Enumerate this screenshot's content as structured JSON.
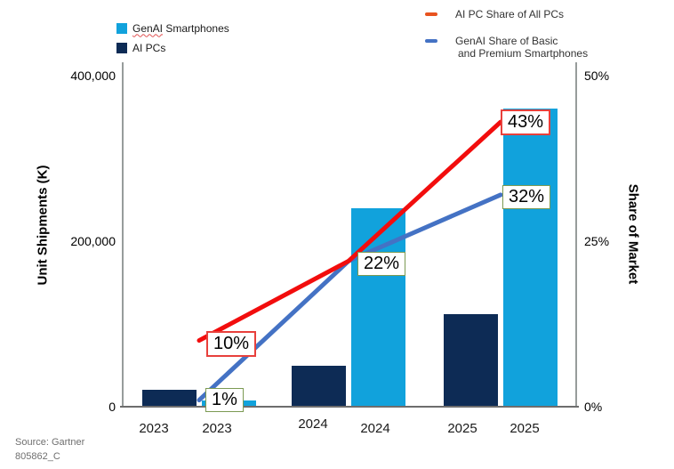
{
  "legend_left": {
    "item1_word1": "GenAI",
    "item1_word2": " Smartphones",
    "item2": "AI PCs"
  },
  "legend_right": {
    "item1": "AI PC Share of All PCs",
    "item2_line1": "GenAI Share of Basic",
    "item2_line2": "and Premium Smartphones"
  },
  "source": {
    "line1": "Source: Gartner",
    "line2": "805862_C"
  },
  "colors": {
    "genai_bar": "#11a2dc",
    "ai_pc_bar": "#0d2b55",
    "ai_pc_line": "#f20d0d",
    "ai_pc_legend_dash": "#e8531f",
    "genai_line": "#4472c4",
    "callout_red_border": "#e8403c",
    "callout_green_border": "#7c9a53",
    "axis_grey": "#979c9b"
  },
  "chart_data": {
    "type": "bar+line combo (dual axis)",
    "bar_categories": [
      "2023",
      "2024",
      "2025"
    ],
    "x_tick_labels": [
      "2023",
      "2023",
      "2024",
      "2024",
      "2025",
      "2025"
    ],
    "bar_series": [
      {
        "name": "AI PCs",
        "color": "#0d2b55",
        "values_k": [
          20000,
          50000,
          112000
        ]
      },
      {
        "name": "GenAI Smartphones",
        "color": "#11a2dc",
        "values_k": [
          7000,
          240000,
          360000
        ]
      }
    ],
    "line_series": [
      {
        "name": "AI PC Share of All PCs",
        "color": "#f20d0d",
        "values_pct": [
          10,
          22,
          43
        ]
      },
      {
        "name": "GenAI Share of Basic and Premium Smartphones",
        "color": "#4472c4",
        "values_pct": [
          1,
          22,
          32
        ]
      }
    ],
    "callouts": [
      {
        "text": "10%",
        "series": 0,
        "year": 0,
        "border": "red"
      },
      {
        "text": "1%",
        "series": 1,
        "year": 0,
        "border": "green"
      },
      {
        "text": "22%",
        "series": 1,
        "year": 1,
        "border": "green"
      },
      {
        "text": "43%",
        "series": 0,
        "year": 2,
        "border": "red"
      },
      {
        "text": "32%",
        "series": 1,
        "year": 2,
        "border": "green"
      }
    ],
    "y_left_axis": {
      "title": "Unit Shipments (K)",
      "ticks": [
        "400,000",
        "200,000",
        "0"
      ],
      "tick_values": [
        400000,
        200000,
        0
      ],
      "range": [
        0,
        400000
      ]
    },
    "y_right_axis": {
      "title": "Share of Market",
      "ticks": [
        "50%",
        "25%",
        "0%"
      ],
      "tick_values": [
        50,
        25,
        0
      ],
      "range": [
        0,
        50
      ]
    },
    "grid": false,
    "legend_positions": {
      "bars": "top-left",
      "lines": "top-right"
    }
  }
}
